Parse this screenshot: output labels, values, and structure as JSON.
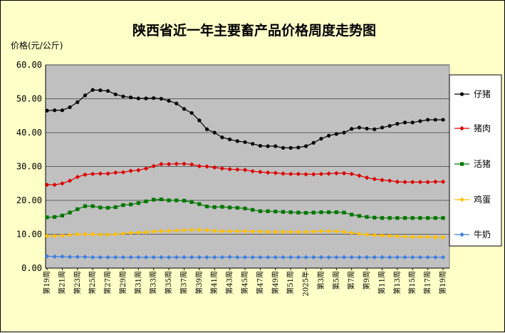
{
  "chart_data": {
    "type": "line",
    "title": "陕西省近一年主要畜产品价格周度走势图",
    "ylabel": "价格(元/公斤)",
    "ylim": [
      0,
      60
    ],
    "yticks": [
      "0.00",
      "10.00",
      "20.00",
      "30.00",
      "40.00",
      "50.00",
      "60.00"
    ],
    "grid": true,
    "legend_position": "right",
    "plot_background": "#c0c0c0",
    "page_background": "#ffffc8",
    "x_tick_labels": [
      "第19周",
      "第21周",
      "第23周",
      "第25周",
      "第27周",
      "第29周",
      "第31周",
      "第33周",
      "第35周",
      "第37周",
      "第39周",
      "第41周",
      "第43周",
      "第45周",
      "第47周",
      "第49周",
      "第51周",
      "2025年",
      "第3周",
      "第5周",
      "第7周",
      "第9周",
      "第11周",
      "第13周",
      "第15周",
      "第17周",
      "第19周"
    ],
    "series": [
      {
        "name": "仔猪",
        "color": "#000000",
        "marker": "circle",
        "values": [
          46.5,
          46.6,
          46.6,
          47.5,
          49.0,
          51.0,
          52.6,
          52.5,
          52.3,
          51.3,
          50.7,
          50.4,
          50.1,
          50.1,
          50.2,
          50.0,
          49.4,
          48.6,
          47.0,
          45.8,
          43.6,
          41.0,
          40.0,
          38.6,
          38.0,
          37.5,
          37.2,
          36.7,
          36.1,
          36.0,
          36.0,
          35.5,
          35.5,
          35.6,
          36.0,
          37.0,
          38.2,
          39.1,
          39.6,
          40.0,
          41.1,
          41.5,
          41.2,
          41.0,
          41.5,
          42.0,
          42.6,
          43.0,
          43.0,
          43.4,
          43.8,
          43.8,
          43.8
        ]
      },
      {
        "name": "猪肉",
        "color": "#dd0000",
        "marker": "diamond",
        "values": [
          24.6,
          24.6,
          25.0,
          25.8,
          26.9,
          27.6,
          27.8,
          27.9,
          27.9,
          28.2,
          28.3,
          28.7,
          28.9,
          29.4,
          30.1,
          30.7,
          30.7,
          30.8,
          30.8,
          30.6,
          30.1,
          30.0,
          29.7,
          29.4,
          29.2,
          29.1,
          29.0,
          28.6,
          28.4,
          28.2,
          28.1,
          27.9,
          27.8,
          27.8,
          27.7,
          27.7,
          27.8,
          27.9,
          28.0,
          28.0,
          27.8,
          27.3,
          26.7,
          26.3,
          26.0,
          25.8,
          25.5,
          25.4,
          25.4,
          25.4,
          25.4,
          25.5,
          25.5
        ]
      },
      {
        "name": "活猪",
        "color": "#007700",
        "marker": "square",
        "values": [
          15.0,
          15.1,
          15.5,
          16.4,
          17.4,
          18.3,
          18.3,
          17.9,
          17.8,
          18.0,
          18.6,
          18.8,
          19.2,
          19.7,
          20.2,
          20.3,
          20.0,
          20.0,
          19.9,
          19.5,
          18.9,
          18.2,
          18.0,
          18.1,
          17.9,
          17.8,
          17.6,
          17.2,
          16.8,
          16.8,
          16.7,
          16.6,
          16.5,
          16.4,
          16.3,
          16.4,
          16.5,
          16.5,
          16.5,
          16.4,
          15.8,
          15.4,
          15.1,
          14.9,
          14.8,
          14.8,
          14.8,
          14.8,
          14.8,
          14.8,
          14.8,
          14.8,
          14.8
        ]
      },
      {
        "name": "鸡蛋",
        "color": "#ffbf00",
        "marker": "diamond",
        "values": [
          9.5,
          9.5,
          9.6,
          9.8,
          10.0,
          10.0,
          10.0,
          9.9,
          9.9,
          10.0,
          10.2,
          10.4,
          10.5,
          10.6,
          10.8,
          10.9,
          11.0,
          11.1,
          11.2,
          11.3,
          11.3,
          11.2,
          11.0,
          10.9,
          10.9,
          10.9,
          10.9,
          10.8,
          10.8,
          10.7,
          10.7,
          10.7,
          10.7,
          10.7,
          10.7,
          10.8,
          10.9,
          10.9,
          10.9,
          10.7,
          10.4,
          10.1,
          9.9,
          9.7,
          9.6,
          9.5,
          9.4,
          9.3,
          9.2,
          9.2,
          9.2,
          9.1,
          9.1
        ]
      },
      {
        "name": "牛奶",
        "color": "#3d7fe0",
        "marker": "diamond",
        "values": [
          3.5,
          3.4,
          3.4,
          3.3,
          3.3,
          3.3,
          3.2,
          3.2,
          3.2,
          3.2,
          3.2,
          3.2,
          3.2,
          3.2,
          3.2,
          3.2,
          3.2,
          3.2,
          3.2,
          3.2,
          3.2,
          3.2,
          3.2,
          3.2,
          3.3,
          3.2,
          3.2,
          3.2,
          3.2,
          3.2,
          3.2,
          3.2,
          3.2,
          3.2,
          3.2,
          3.2,
          3.2,
          3.2,
          3.2,
          3.2,
          3.2,
          3.2,
          3.2,
          3.2,
          3.2,
          3.2,
          3.2,
          3.2,
          3.2,
          3.2,
          3.2,
          3.2,
          3.2
        ]
      }
    ]
  }
}
